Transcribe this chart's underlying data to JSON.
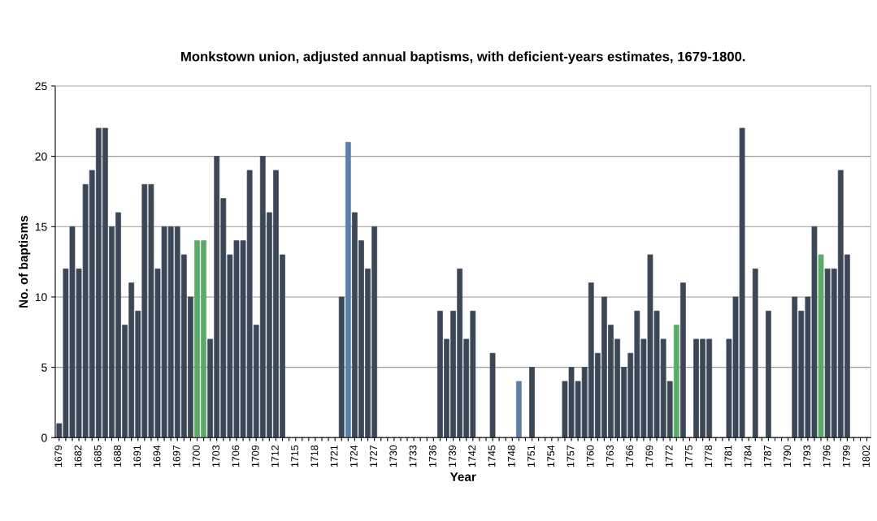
{
  "chart_data": {
    "type": "bar",
    "title": "Monkstown union, adjusted annual baptisms, with deficient-years estimates, 1679-1800.",
    "xlabel": "Year",
    "ylabel": "No. of baptisms",
    "categories": [
      "1679",
      null,
      null,
      "1682",
      null,
      null,
      "1685",
      null,
      null,
      "1688",
      null,
      null,
      "1691",
      null,
      null,
      "1694",
      null,
      null,
      "1697",
      null,
      null,
      "1700",
      null,
      null,
      "1703",
      null,
      null,
      "1706",
      null,
      null,
      "1709",
      null,
      null,
      "1712",
      null,
      null,
      "1715",
      null,
      null,
      "1718",
      null,
      null,
      "1721",
      null,
      null,
      "1724",
      null,
      null,
      "1727",
      null,
      null,
      "1730",
      null,
      null,
      "1733",
      null,
      null,
      "1736",
      null,
      null,
      "1739",
      null,
      null,
      "1742",
      null,
      null,
      "1745",
      null,
      null,
      "1748",
      null,
      null,
      "1751",
      null,
      null,
      "1754",
      null,
      null,
      "1757",
      null,
      null,
      "1760",
      null,
      null,
      "1763",
      null,
      null,
      "1766",
      null,
      null,
      "1769",
      null,
      null,
      "1772",
      null,
      null,
      "1775",
      null,
      null,
      "1778",
      null,
      null,
      "1781",
      null,
      null,
      "1784",
      null,
      null,
      "1787",
      null,
      null,
      "1790",
      null,
      null,
      "1793",
      null,
      null,
      "1796",
      null,
      null,
      "1799",
      null,
      null,
      "1802"
    ],
    "values": [
      1,
      12,
      15,
      12,
      18,
      19,
      22,
      22,
      15,
      16,
      8,
      11,
      9,
      18,
      18,
      12,
      15,
      15,
      15,
      13,
      10,
      14,
      14,
      7,
      20,
      17,
      13,
      14,
      14,
      19,
      8,
      20,
      16,
      19,
      13,
      0,
      0,
      0,
      0,
      0,
      0,
      0,
      0,
      10,
      21,
      16,
      14,
      12,
      15,
      0,
      0,
      0,
      0,
      0,
      0,
      0,
      0,
      0,
      9,
      7,
      9,
      12,
      7,
      9,
      0,
      0,
      6,
      0,
      0,
      0,
      4,
      0,
      5,
      0,
      0,
      0,
      0,
      4,
      5,
      4,
      5,
      11,
      6,
      10,
      8,
      7,
      5,
      6,
      9,
      7,
      13,
      9,
      7,
      4,
      8,
      11,
      0,
      7,
      7,
      7,
      0,
      0,
      7,
      10,
      22,
      0,
      12,
      0,
      9,
      0,
      0,
      0,
      10,
      9,
      10,
      15,
      13,
      12,
      12,
      19,
      13,
      0,
      0,
      0
    ],
    "colors": [
      "#3b4756",
      "#3b4756",
      "#3b4756",
      "#3b4756",
      "#3b4756",
      "#3b4756",
      "#3b4756",
      "#3b4756",
      "#3b4756",
      "#3b4756",
      "#3b4756",
      "#3b4756",
      "#3b4756",
      "#3b4756",
      "#3b4756",
      "#3b4756",
      "#3b4756",
      "#3b4756",
      "#3b4756",
      "#3b4756",
      "#3b4756",
      "#5aaa68",
      "#5aaa68",
      "#3b4756",
      "#3b4756",
      "#3b4756",
      "#3b4756",
      "#3b4756",
      "#3b4756",
      "#3b4756",
      "#3b4756",
      "#3b4756",
      "#3b4756",
      "#3b4756",
      "#3b4756",
      "#3b4756",
      "#3b4756",
      "#3b4756",
      "#3b4756",
      "#3b4756",
      "#3b4756",
      "#3b4756",
      "#3b4756",
      "#3b4756",
      "#5b7fa6",
      "#3b4756",
      "#3b4756",
      "#3b4756",
      "#3b4756",
      "#3b4756",
      "#3b4756",
      "#3b4756",
      "#3b4756",
      "#3b4756",
      "#3b4756",
      "#3b4756",
      "#3b4756",
      "#3b4756",
      "#3b4756",
      "#3b4756",
      "#3b4756",
      "#3b4756",
      "#3b4756",
      "#3b4756",
      "#3b4756",
      "#3b4756",
      "#3b4756",
      "#3b4756",
      "#3b4756",
      "#3b4756",
      "#5b7fa6",
      "#3b4756",
      "#3b4756",
      "#3b4756",
      "#3b4756",
      "#3b4756",
      "#3b4756",
      "#3b4756",
      "#3b4756",
      "#3b4756",
      "#3b4756",
      "#3b4756",
      "#3b4756",
      "#3b4756",
      "#3b4756",
      "#3b4756",
      "#3b4756",
      "#3b4756",
      "#3b4756",
      "#3b4756",
      "#3b4756",
      "#3b4756",
      "#3b4756",
      "#3b4756",
      "#5aaa68",
      "#3b4756",
      "#3b4756",
      "#3b4756",
      "#3b4756",
      "#3b4756",
      "#3b4756",
      "#3b4756",
      "#3b4756",
      "#3b4756",
      "#3b4756",
      "#3b4756",
      "#3b4756",
      "#3b4756",
      "#3b4756",
      "#3b4756",
      "#3b4756",
      "#3b4756",
      "#3b4756",
      "#3b4756",
      "#3b4756",
      "#3b4756",
      "#5aaa68",
      "#3b4756",
      "#3b4756",
      "#3b4756",
      "#3b4756",
      "#3b4756",
      "#3b4756",
      "#3b4756"
    ],
    "ylim": [
      0,
      25
    ],
    "yticks": [
      0,
      5,
      10,
      15,
      20,
      25
    ],
    "grid": "y"
  }
}
